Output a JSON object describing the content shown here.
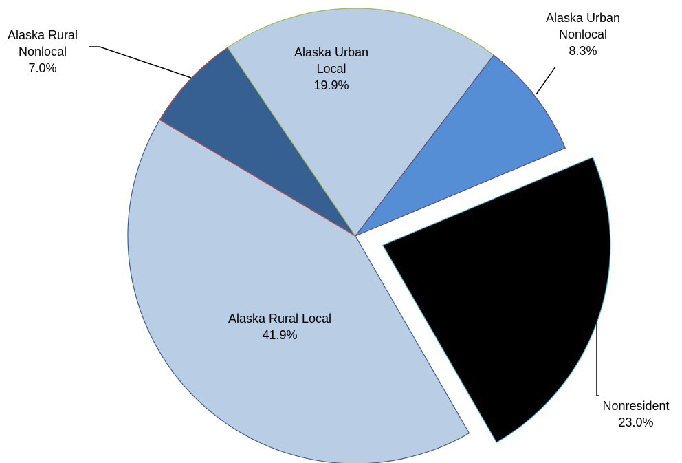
{
  "chart_data": {
    "type": "pie",
    "categories": [
      "Alaska Rural Local",
      "Alaska Rural Nonlocal",
      "Alaska Urban Local",
      "Alaska Urban Nonlocal",
      "Nonresident"
    ],
    "values": [
      41.9,
      7.0,
      19.9,
      8.3,
      23.0
    ],
    "value_labels": [
      "41.9%",
      "7.0%",
      "19.9%",
      "8.3%",
      "23.0%"
    ],
    "colors": [
      "#b9cde5",
      "#376092",
      "#b9cde5",
      "#558ed5",
      "#000000"
    ]
  }
}
